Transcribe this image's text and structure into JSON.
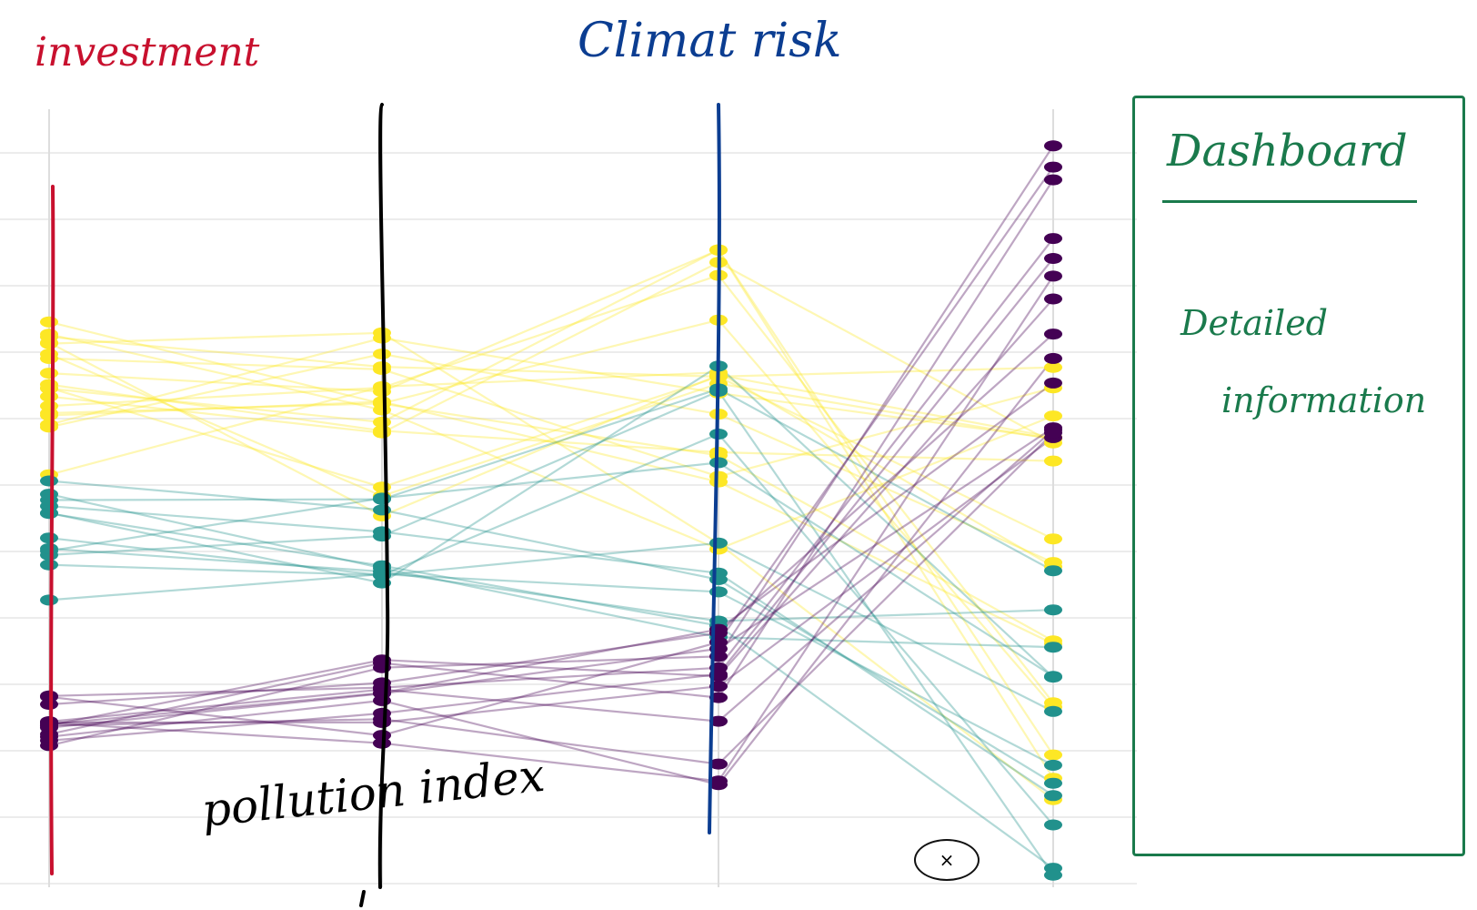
{
  "chart_data": {
    "type": "parallel-coordinates",
    "axes": [
      {
        "label": "investment"
      },
      {
        "label": "pollution index"
      },
      {
        "label": "Climat risk"
      },
      {
        "label": ""
      }
    ],
    "groups": [
      {
        "color": "#fde725",
        "count": 18
      },
      {
        "color": "#21918c",
        "count": 12
      },
      {
        "color": "#440154",
        "count": 14
      }
    ],
    "grid": true
  },
  "annotations": {
    "investment": "investment",
    "climate_risk": "Climat risk",
    "pollution_index": "pollution index"
  },
  "dashboard": {
    "title": "Dashboard",
    "detail_line1": "Detailed",
    "detail_line2": "information"
  },
  "close_icon": "×",
  "colors": {
    "investment_axis": "#c8102e",
    "pollution_axis": "#000000",
    "climate_axis": "#0b3d91",
    "dashboard": "#1a7a4c"
  }
}
